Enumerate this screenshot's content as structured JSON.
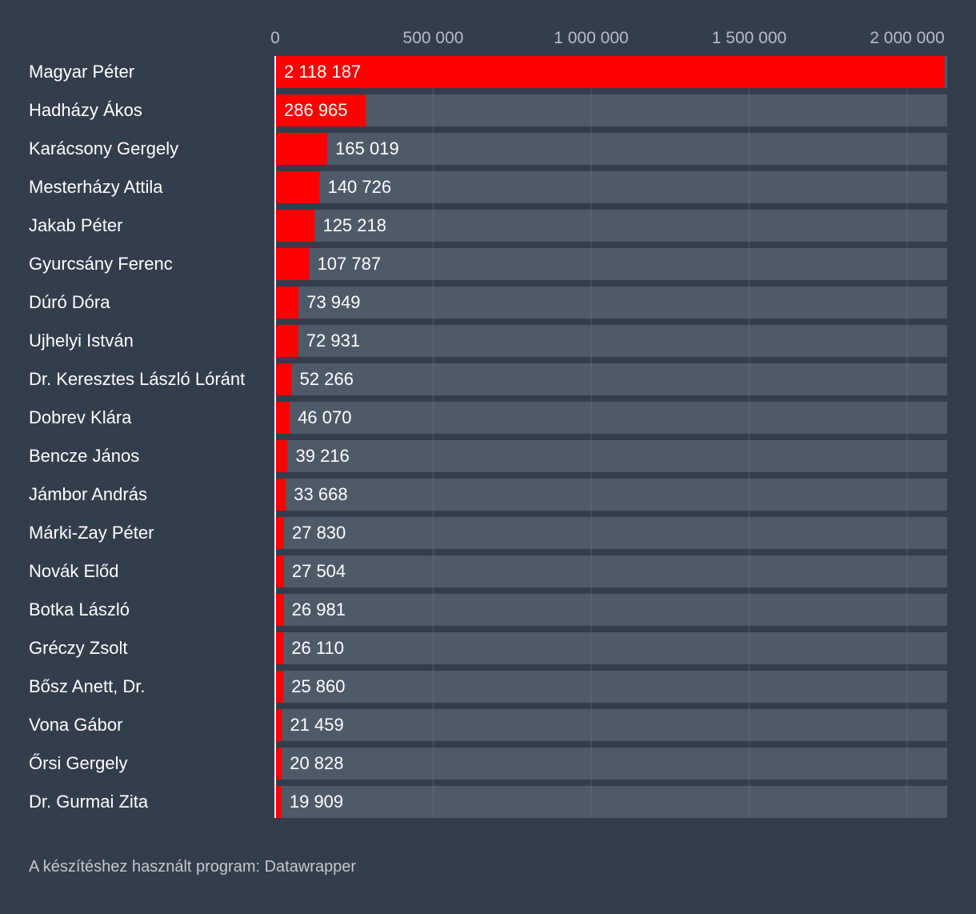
{
  "chart_data": {
    "type": "bar",
    "orientation": "horizontal",
    "xlim": [
      0,
      2118187
    ],
    "ticks": [
      {
        "value": 0,
        "label": "0"
      },
      {
        "value": 500000,
        "label": "500 000"
      },
      {
        "value": 1000000,
        "label": "1 000 000"
      },
      {
        "value": 1500000,
        "label": "1 500 000"
      },
      {
        "value": 2000000,
        "label": "2 000 000"
      }
    ],
    "grid": true,
    "colors": {
      "bar": "#ff0000",
      "track": "#4f5a69",
      "background": "#333d4c",
      "grid": "#6b7482",
      "text": "#ffffff",
      "tick_text": "#b8bec6"
    },
    "bars": [
      {
        "category": "Magyar Péter",
        "value": 2118187,
        "label": "2 118 187"
      },
      {
        "category": "Hadházy Ákos",
        "value": 286965,
        "label": "286 965"
      },
      {
        "category": "Karácsony Gergely",
        "value": 165019,
        "label": "165 019"
      },
      {
        "category": "Mesterházy Attila",
        "value": 140726,
        "label": "140 726"
      },
      {
        "category": "Jakab Péter",
        "value": 125218,
        "label": "125 218"
      },
      {
        "category": "Gyurcsány Ferenc",
        "value": 107787,
        "label": "107 787"
      },
      {
        "category": "Dúró Dóra",
        "value": 73949,
        "label": "73 949"
      },
      {
        "category": "Ujhelyi István",
        "value": 72931,
        "label": "72 931"
      },
      {
        "category": "Dr. Keresztes László Lóránt",
        "value": 52266,
        "label": "52 266"
      },
      {
        "category": "Dobrev Klára",
        "value": 46070,
        "label": "46 070"
      },
      {
        "category": "Bencze János",
        "value": 39216,
        "label": "39 216"
      },
      {
        "category": "Jámbor András",
        "value": 33668,
        "label": "33 668"
      },
      {
        "category": "Márki-Zay Péter",
        "value": 27830,
        "label": "27 830"
      },
      {
        "category": "Novák Előd",
        "value": 27504,
        "label": "27 504"
      },
      {
        "category": "Botka László",
        "value": 26981,
        "label": "26 981"
      },
      {
        "category": "Gréczy Zsolt",
        "value": 26110,
        "label": "26 110"
      },
      {
        "category": "Bősz Anett, Dr.",
        "value": 25860,
        "label": "25 860"
      },
      {
        "category": "Vona Gábor",
        "value": 21459,
        "label": "21 459"
      },
      {
        "category": "Őrsi Gergely",
        "value": 20828,
        "label": "20 828"
      },
      {
        "category": "Dr. Gurmai Zita",
        "value": 19909,
        "label": "19 909"
      }
    ]
  },
  "footer": {
    "credit": "A készítéshez használt program: Datawrapper"
  }
}
